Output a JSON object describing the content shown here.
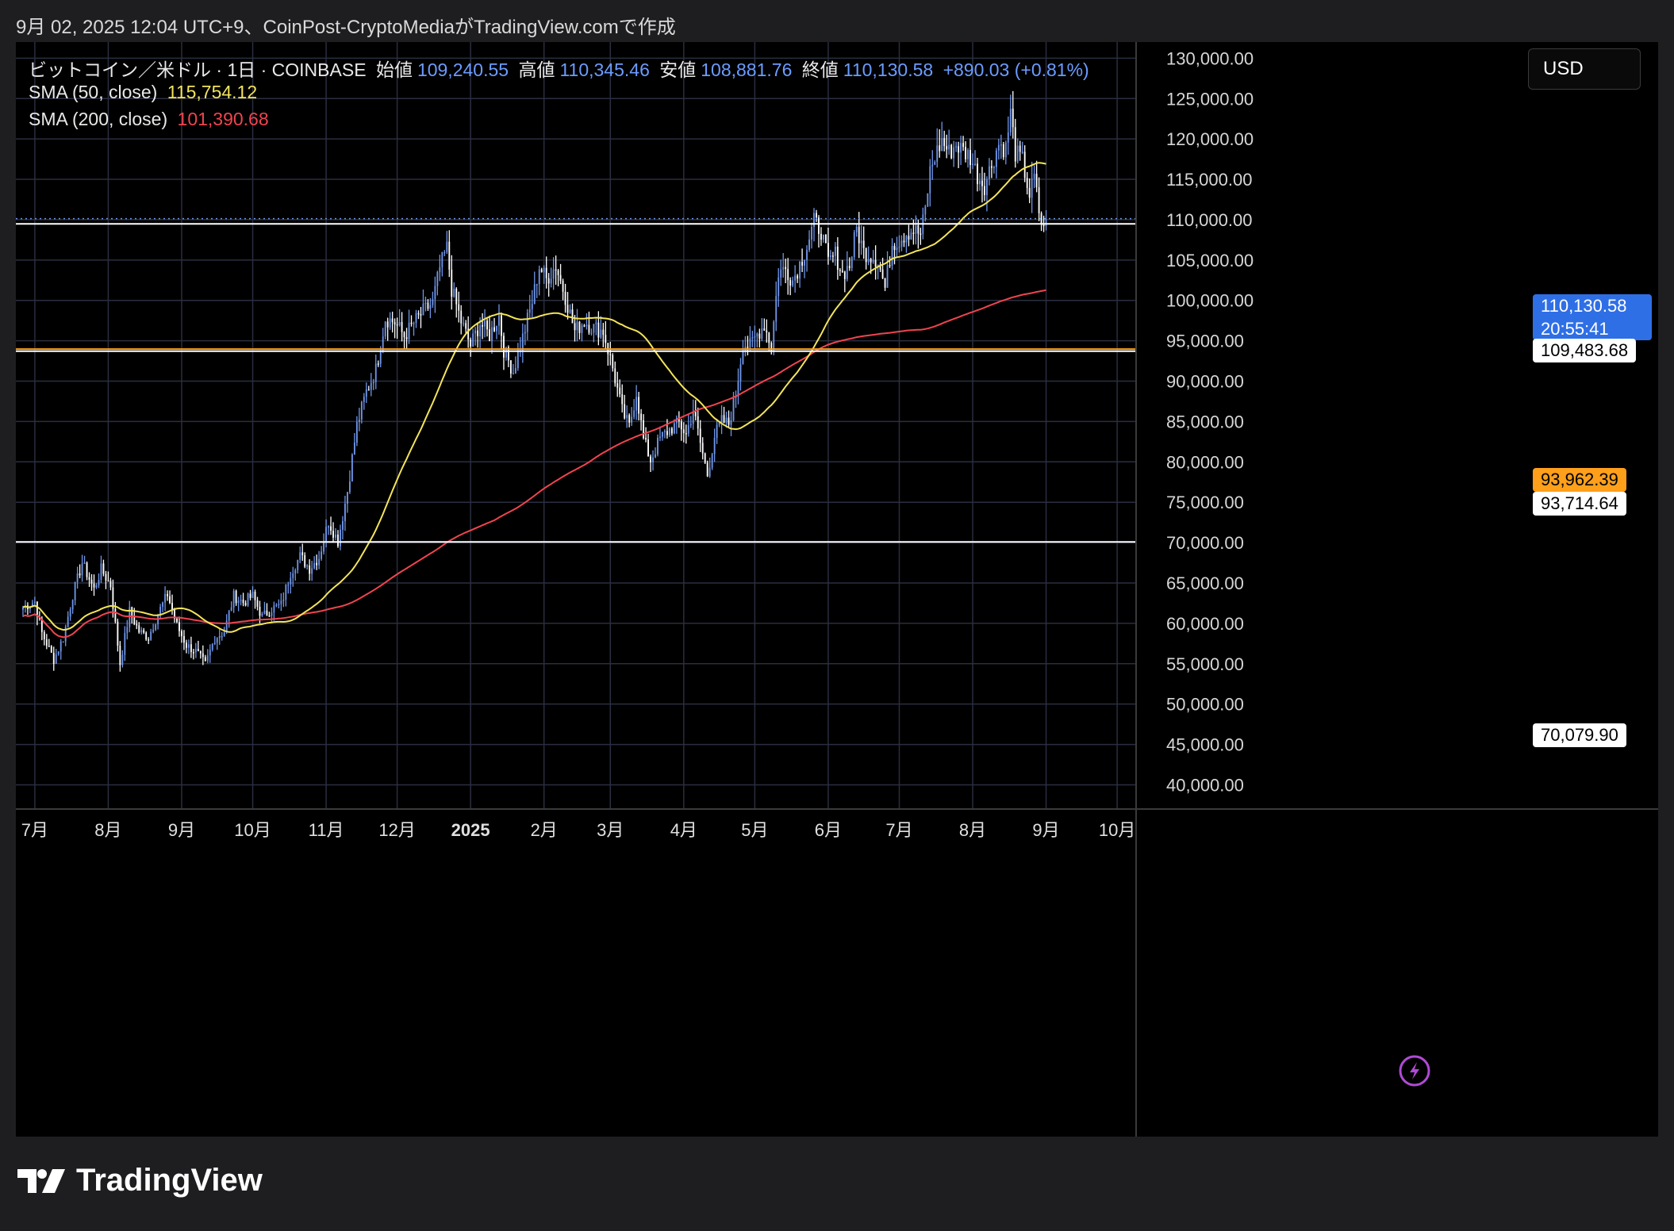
{
  "caption": "9月 02, 2025 12:04 UTC+9、CoinPost-CryptoMediaがTradingView.comで作成",
  "legend": {
    "symbol": "ビットコイン／米ドル · 1日 · COINBASE",
    "open_label": "始値",
    "open": "109,240.55",
    "high_label": "高値",
    "high": "110,345.46",
    "low_label": "安値",
    "low": "108,881.76",
    "close_label": "終値",
    "close": "110,130.58",
    "change": "+890.03 (+0.81%)",
    "sma50_label": "SMA (50, close)",
    "sma50_value": "115,754.12",
    "sma200_label": "SMA (200, close)",
    "sma200_value": "101,390.68"
  },
  "currency": "USD",
  "brand": "TradingView",
  "price_labels": {
    "last_price": "110,130.58",
    "countdown": "20:55:41",
    "line_1": "109,483.68",
    "line_2": "93,962.39",
    "line_3": "93,714.64",
    "line_4": "70,079.90"
  },
  "colors": {
    "up": "#6f95e8",
    "down": "#ffffff",
    "sma50": "#f3e45a",
    "sma200": "#f0444f",
    "orange_line": "#ff9f1a",
    "background": "#000000",
    "grid": "#2a2e3f"
  },
  "chart_data": {
    "type": "candlestick",
    "symbol": "BTC/USD",
    "interval": "1D",
    "ylim": [
      37000,
      132000
    ],
    "y_ticks": [
      "40,000.00",
      "45,000.00",
      "50,000.00",
      "55,000.00",
      "60,000.00",
      "65,000.00",
      "70,000.00",
      "75,000.00",
      "80,000.00",
      "85,000.00",
      "90,000.00",
      "95,000.00",
      "100,000.00",
      "105,000.00",
      "110,000.00",
      "115,000.00",
      "120,000.00",
      "125,000.00",
      "130,000.00"
    ],
    "y_tick_values": [
      40000,
      45000,
      50000,
      55000,
      60000,
      65000,
      70000,
      75000,
      80000,
      85000,
      90000,
      95000,
      100000,
      105000,
      110000,
      115000,
      120000,
      125000,
      130000
    ],
    "x_ticks": [
      "7月",
      "8月",
      "9月",
      "10月",
      "11月",
      "12月",
      "2025",
      "2月",
      "3月",
      "4月",
      "5月",
      "6月",
      "7月",
      "8月",
      "9月",
      "10月"
    ],
    "x_tick_days": [
      0,
      31,
      62,
      92,
      123,
      153,
      184,
      215,
      243,
      274,
      304,
      335,
      365,
      396,
      427,
      457
    ],
    "last_day": 427,
    "horizontal_lines": [
      {
        "value": 109483.68,
        "color": "#ffffff"
      },
      {
        "value": 93962.39,
        "color": "#ff9f1a"
      },
      {
        "value": 93714.64,
        "color": "#ffffff"
      },
      {
        "value": 70079.9,
        "color": "#ffffff"
      }
    ],
    "last_price": 110130.58,
    "close_anchors": [
      [
        -5,
        62000
      ],
      [
        0,
        62700
      ],
      [
        3,
        58800
      ],
      [
        8,
        55500
      ],
      [
        12,
        58200
      ],
      [
        16,
        63500
      ],
      [
        20,
        67500
      ],
      [
        25,
        64200
      ],
      [
        28,
        66700
      ],
      [
        32,
        64700
      ],
      [
        36,
        55000
      ],
      [
        40,
        61500
      ],
      [
        44,
        59000
      ],
      [
        48,
        58300
      ],
      [
        52,
        61200
      ],
      [
        56,
        63600
      ],
      [
        60,
        59700
      ],
      [
        64,
        57300
      ],
      [
        68,
        56500
      ],
      [
        72,
        54900
      ],
      [
        76,
        58200
      ],
      [
        80,
        59000
      ],
      [
        84,
        63400
      ],
      [
        88,
        62600
      ],
      [
        92,
        63400
      ],
      [
        96,
        60800
      ],
      [
        100,
        61800
      ],
      [
        104,
        62300
      ],
      [
        108,
        66300
      ],
      [
        112,
        68300
      ],
      [
        116,
        66800
      ],
      [
        120,
        68200
      ],
      [
        124,
        72600
      ],
      [
        128,
        70200
      ],
      [
        132,
        76400
      ],
      [
        136,
        84500
      ],
      [
        140,
        88700
      ],
      [
        144,
        91400
      ],
      [
        148,
        97800
      ],
      [
        152,
        97300
      ],
      [
        156,
        95600
      ],
      [
        160,
        97200
      ],
      [
        164,
        98600
      ],
      [
        168,
        99700
      ],
      [
        171,
        104000
      ],
      [
        174,
        106500
      ],
      [
        176,
        101400
      ],
      [
        180,
        97400
      ],
      [
        184,
        94400
      ],
      [
        188,
        97200
      ],
      [
        192,
        95700
      ],
      [
        196,
        98100
      ],
      [
        198,
        93900
      ],
      [
        202,
        91200
      ],
      [
        206,
        95400
      ],
      [
        210,
        99800
      ],
      [
        213,
        104200
      ],
      [
        216,
        102600
      ],
      [
        220,
        104300
      ],
      [
        224,
        100500
      ],
      [
        228,
        96200
      ],
      [
        232,
        97400
      ],
      [
        236,
        96600
      ],
      [
        240,
        96200
      ],
      [
        244,
        91600
      ],
      [
        248,
        86300
      ],
      [
        251,
        84300
      ],
      [
        254,
        88600
      ],
      [
        257,
        82800
      ],
      [
        260,
        80200
      ],
      [
        264,
        82900
      ],
      [
        268,
        84000
      ],
      [
        272,
        84800
      ],
      [
        275,
        83400
      ],
      [
        278,
        86400
      ],
      [
        281,
        82300
      ],
      [
        284,
        78400
      ],
      [
        287,
        83200
      ],
      [
        290,
        85000
      ],
      [
        293,
        84700
      ],
      [
        296,
        88400
      ],
      [
        299,
        94700
      ],
      [
        302,
        94300
      ],
      [
        305,
        95800
      ],
      [
        308,
        97000
      ],
      [
        311,
        94200
      ],
      [
        314,
        103500
      ],
      [
        317,
        103900
      ],
      [
        320,
        102500
      ],
      [
        323,
        104500
      ],
      [
        326,
        106700
      ],
      [
        329,
        109700
      ],
      [
        332,
        108700
      ],
      [
        335,
        104600
      ],
      [
        338,
        105700
      ],
      [
        341,
        103300
      ],
      [
        344,
        104300
      ],
      [
        347,
        108900
      ],
      [
        350,
        106000
      ],
      [
        353,
        105600
      ],
      [
        356,
        105000
      ],
      [
        359,
        101500
      ],
      [
        362,
        107100
      ],
      [
        365,
        107500
      ],
      [
        368,
        108400
      ],
      [
        371,
        108700
      ],
      [
        374,
        108200
      ],
      [
        376,
        111200
      ],
      [
        378,
        116000
      ],
      [
        380,
        117800
      ],
      [
        383,
        119800
      ],
      [
        386,
        118300
      ],
      [
        389,
        119300
      ],
      [
        392,
        118500
      ],
      [
        395,
        117800
      ],
      [
        398,
        115500
      ],
      [
        401,
        114300
      ],
      [
        404,
        116900
      ],
      [
        407,
        119400
      ],
      [
        410,
        118800
      ],
      [
        412,
        123200
      ],
      [
        414,
        118300
      ],
      [
        417,
        117300
      ],
      [
        420,
        113000
      ],
      [
        422,
        115200
      ],
      [
        424,
        111000
      ],
      [
        426,
        108500
      ],
      [
        427,
        110130
      ]
    ]
  }
}
